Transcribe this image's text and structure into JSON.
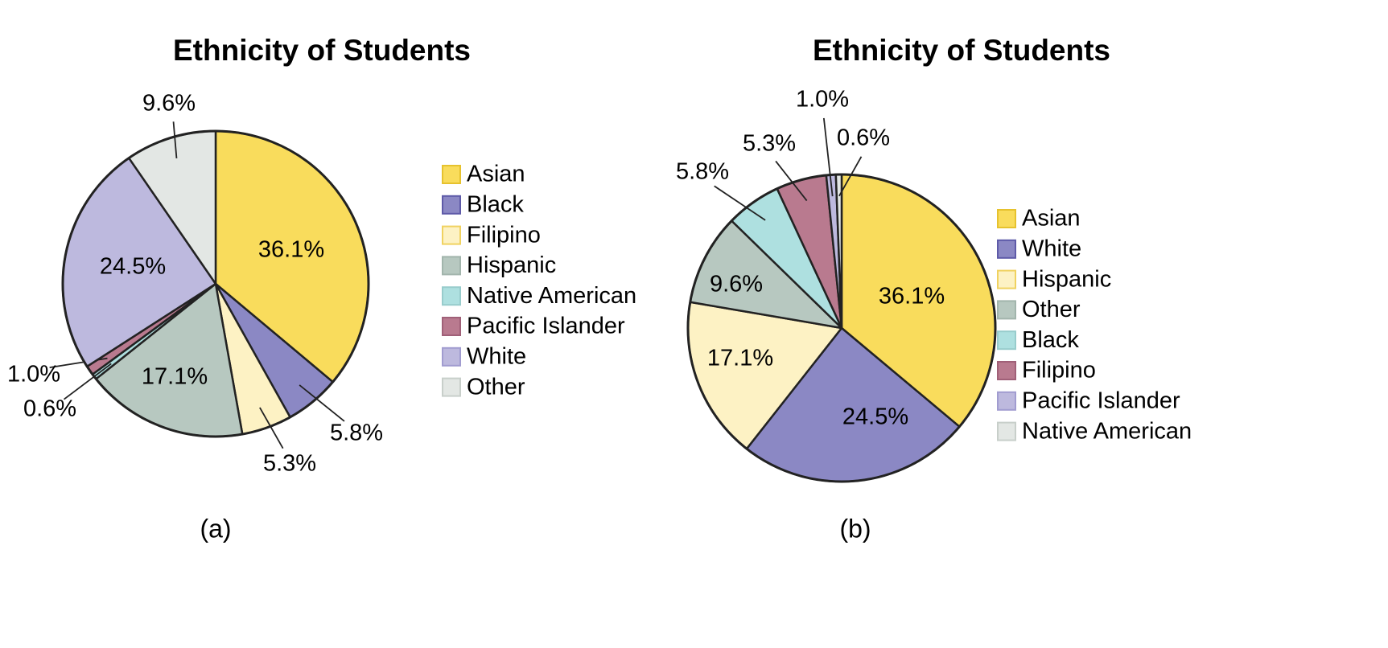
{
  "colors": {
    "Asian": "#f9dc5c",
    "Black_a": "#8b88c4",
    "Filipino_a": "#fdf2c4",
    "Hispanic_a": "#b7c8c0",
    "Native American_a": "#aee0e0",
    "Pacific Islander_a": "#b97a8f",
    "White_a": "#bdb9de",
    "Other_a": "#e3e7e4"
  },
  "chart_data": [
    {
      "type": "pie",
      "title": "Ethnicity of Students",
      "caption": "(a)",
      "legend_position": "right",
      "slices": [
        {
          "name": "Asian",
          "value": 36.1,
          "label": "36.1%",
          "color": "#f9dc5c",
          "border": "#e6c22e"
        },
        {
          "name": "Black",
          "value": 5.8,
          "label": "5.8%",
          "color": "#8b88c4",
          "border": "#5e5aa8"
        },
        {
          "name": "Filipino",
          "value": 5.3,
          "label": "5.3%",
          "color": "#fdf2c4",
          "border": "#f0d260"
        },
        {
          "name": "Hispanic",
          "value": 17.1,
          "label": "17.1%",
          "color": "#b7c8c0",
          "border": "#a2b5ac"
        },
        {
          "name": "Native American",
          "value": 0.6,
          "label": "0.6%",
          "color": "#aee0e0",
          "border": "#98cccc"
        },
        {
          "name": "Pacific Islander",
          "value": 1.0,
          "label": "1.0%",
          "color": "#b97a8f",
          "border": "#a06078"
        },
        {
          "name": "White",
          "value": 24.5,
          "label": "24.5%",
          "color": "#bdb9de",
          "border": "#a19cd0"
        },
        {
          "name": "Other",
          "value": 9.6,
          "label": "9.6%",
          "color": "#e3e7e4",
          "border": "#c8cfca"
        }
      ]
    },
    {
      "type": "pie",
      "title": "Ethnicity of Students",
      "caption": "(b)",
      "legend_position": "right",
      "slices": [
        {
          "name": "Asian",
          "value": 36.1,
          "label": "36.1%",
          "color": "#f9dc5c",
          "border": "#e6c22e"
        },
        {
          "name": "White",
          "value": 24.5,
          "label": "24.5%",
          "color": "#8b88c4",
          "border": "#5e5aa8"
        },
        {
          "name": "Hispanic",
          "value": 17.1,
          "label": "17.1%",
          "color": "#fdf2c4",
          "border": "#f0d260"
        },
        {
          "name": "Other",
          "value": 9.6,
          "label": "9.6%",
          "color": "#b7c8c0",
          "border": "#a2b5ac"
        },
        {
          "name": "Black",
          "value": 5.8,
          "label": "5.8%",
          "color": "#aee0e0",
          "border": "#98cccc"
        },
        {
          "name": "Filipino",
          "value": 5.3,
          "label": "5.3%",
          "color": "#b97a8f",
          "border": "#a06078"
        },
        {
          "name": "Pacific Islander",
          "value": 1.0,
          "label": "1.0%",
          "color": "#bdb9de",
          "border": "#a19cd0"
        },
        {
          "name": "Native American",
          "value": 0.6,
          "label": "0.6%",
          "color": "#e3e7e4",
          "border": "#c8cfca"
        }
      ]
    }
  ]
}
